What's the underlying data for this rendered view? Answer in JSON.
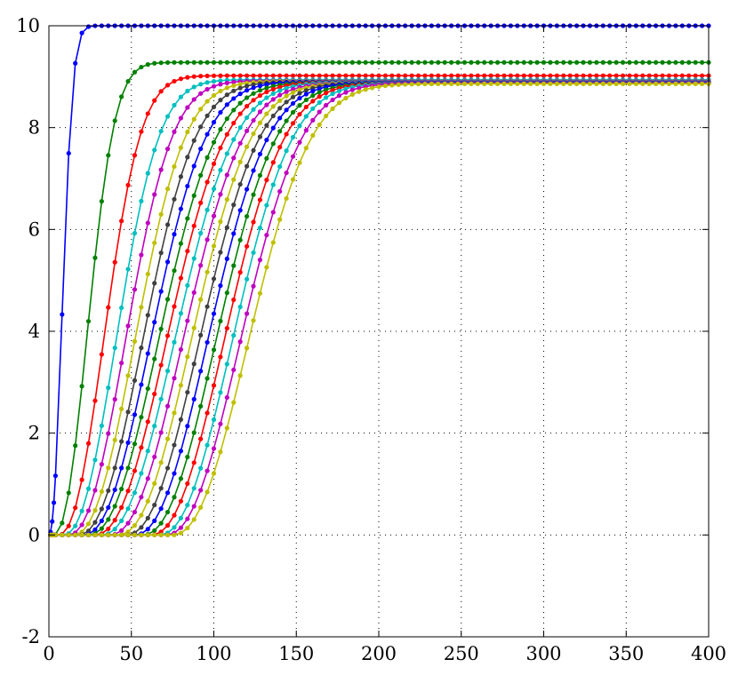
{
  "chart_data": {
    "type": "line",
    "title": "",
    "xlabel": "",
    "ylabel": "",
    "xlim": [
      0,
      400
    ],
    "ylim": [
      -2,
      10
    ],
    "xticks": [
      0,
      50,
      100,
      150,
      200,
      250,
      300,
      350,
      400
    ],
    "yticks": [
      -2,
      0,
      2,
      4,
      6,
      8,
      10
    ],
    "x_tick_labels": [
      "0",
      "50",
      "100",
      "150",
      "200",
      "250",
      "300",
      "350",
      "400"
    ],
    "y_tick_labels": [
      "-2",
      "0",
      "2",
      "4",
      "6",
      "8",
      "10"
    ],
    "grid": true,
    "grid_style": "dotted",
    "legend": "none",
    "marker": "dot",
    "sample_step": 4,
    "series": [
      {
        "color": "#0000ff",
        "onset": 0,
        "rise_mid": 9,
        "width": 9,
        "plateau": 10.0
      },
      {
        "color": "#008000",
        "onset": 3,
        "rise_mid": 26,
        "width": 12,
        "plateau": 9.28
      },
      {
        "color": "#ff0000",
        "onset": 6,
        "rise_mid": 37,
        "width": 13,
        "plateau": 9.02
      },
      {
        "color": "#00bfbf",
        "onset": 9,
        "rise_mid": 45,
        "width": 14,
        "plateau": 8.94
      },
      {
        "color": "#bf00bf",
        "onset": 12,
        "rise_mid": 51,
        "width": 15,
        "plateau": 8.92
      },
      {
        "color": "#bfbf00",
        "onset": 15,
        "rise_mid": 57,
        "width": 15,
        "plateau": 8.91
      },
      {
        "color": "#404040",
        "onset": 18,
        "rise_mid": 62,
        "width": 15,
        "plateau": 8.9
      },
      {
        "color": "#0000ff",
        "onset": 21,
        "rise_mid": 67,
        "width": 15,
        "plateau": 8.9
      },
      {
        "color": "#008000",
        "onset": 24,
        "rise_mid": 72,
        "width": 15,
        "plateau": 8.89
      },
      {
        "color": "#ff0000",
        "onset": 28,
        "rise_mid": 77,
        "width": 15,
        "plateau": 8.89
      },
      {
        "color": "#00bfbf",
        "onset": 32,
        "rise_mid": 82,
        "width": 15,
        "plateau": 8.89
      },
      {
        "color": "#bf00bf",
        "onset": 37,
        "rise_mid": 87,
        "width": 15,
        "plateau": 8.88
      },
      {
        "color": "#bfbf00",
        "onset": 42,
        "rise_mid": 92,
        "width": 15,
        "plateau": 8.88
      },
      {
        "color": "#404040",
        "onset": 47,
        "rise_mid": 97,
        "width": 15,
        "plateau": 8.88
      },
      {
        "color": "#0000ff",
        "onset": 52,
        "rise_mid": 102,
        "width": 15,
        "plateau": 8.88
      },
      {
        "color": "#008000",
        "onset": 57,
        "rise_mid": 107,
        "width": 15,
        "plateau": 8.87
      },
      {
        "color": "#ff0000",
        "onset": 62,
        "rise_mid": 112,
        "width": 15,
        "plateau": 8.87
      },
      {
        "color": "#00bfbf",
        "onset": 67,
        "rise_mid": 117,
        "width": 15,
        "plateau": 8.87
      },
      {
        "color": "#bf00bf",
        "onset": 71,
        "rise_mid": 122,
        "width": 15,
        "plateau": 8.87
      },
      {
        "color": "#bfbf00",
        "onset": 75,
        "rise_mid": 127,
        "width": 15,
        "plateau": 8.86
      }
    ]
  }
}
